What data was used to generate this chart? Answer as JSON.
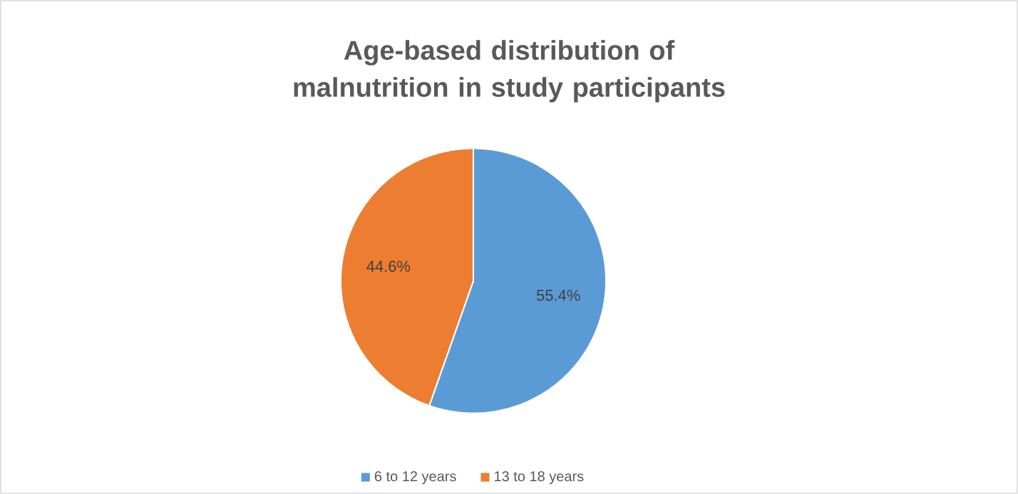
{
  "chart_data": {
    "type": "pie",
    "title": "Age-based distribution of malnutrition in study participants",
    "categories": [
      "6 to 12 years",
      "13 to 18 years"
    ],
    "values": [
      55.4,
      44.6
    ],
    "colors": [
      "#5b9bd5",
      "#ed7d31"
    ],
    "value_labels": [
      "55.4%",
      "44.6%"
    ],
    "legend": "bottom"
  }
}
